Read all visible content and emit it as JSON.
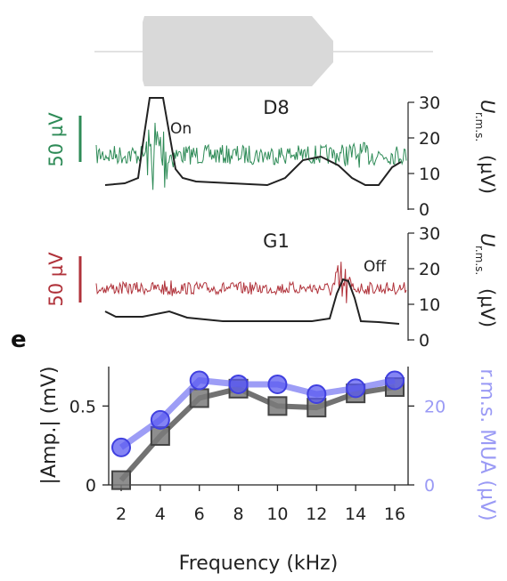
{
  "colors": {
    "green": "#2e8b57",
    "red": "#b0323a",
    "blue": "#5b5bf0",
    "light_blue": "#9a9af5",
    "gray": "#595959",
    "envelope": "#d9d9d9",
    "black": "#222222"
  },
  "panel_letter": "e",
  "stimulus": {
    "type": "frequency-sweep envelope",
    "note": ""
  },
  "traces": [
    {
      "name": "D8",
      "scale_bar_label": "50 µV",
      "annotation": "On",
      "axis_ticks": [
        "0",
        "10",
        "20",
        "30"
      ],
      "axis_unit_label": "(µV)",
      "axis_symbol": "U",
      "axis_subscript": "r.m.s."
    },
    {
      "name": "G1",
      "scale_bar_label": "50 µV",
      "annotation": "Off",
      "axis_ticks": [
        "0",
        "10",
        "20",
        "30"
      ],
      "axis_unit_label": "(µV)",
      "axis_symbol": "U",
      "axis_subscript": "r.m.s."
    }
  ],
  "chart_data": {
    "type": "line",
    "title": "",
    "xlabel": "Frequency (kHz)",
    "ylabel": "|Amp.| (mV)",
    "y2label": "r.m.s. MUA (µV)",
    "x": [
      2,
      4,
      6,
      8,
      10,
      12,
      14,
      16
    ],
    "x_tick_labels": [
      "2",
      "4",
      "6",
      "8",
      "10",
      "12",
      "14",
      "16"
    ],
    "ylim": [
      0,
      0.75
    ],
    "y_ticks": [
      0,
      0.5
    ],
    "y_tick_labels": [
      "0",
      "0.5"
    ],
    "y2lim": [
      0,
      30
    ],
    "y2_ticks": [
      0,
      20
    ],
    "y2_tick_labels": [
      "0",
      "20"
    ],
    "series": [
      {
        "axis": "left",
        "marker": "square",
        "values": [
          0.03,
          0.31,
          0.55,
          0.61,
          0.5,
          0.49,
          0.58,
          0.62
        ]
      },
      {
        "axis": "right",
        "marker": "circle",
        "values": [
          9.5,
          16.5,
          26.5,
          25.5,
          25.5,
          23,
          24.5,
          26.5
        ]
      }
    ]
  }
}
